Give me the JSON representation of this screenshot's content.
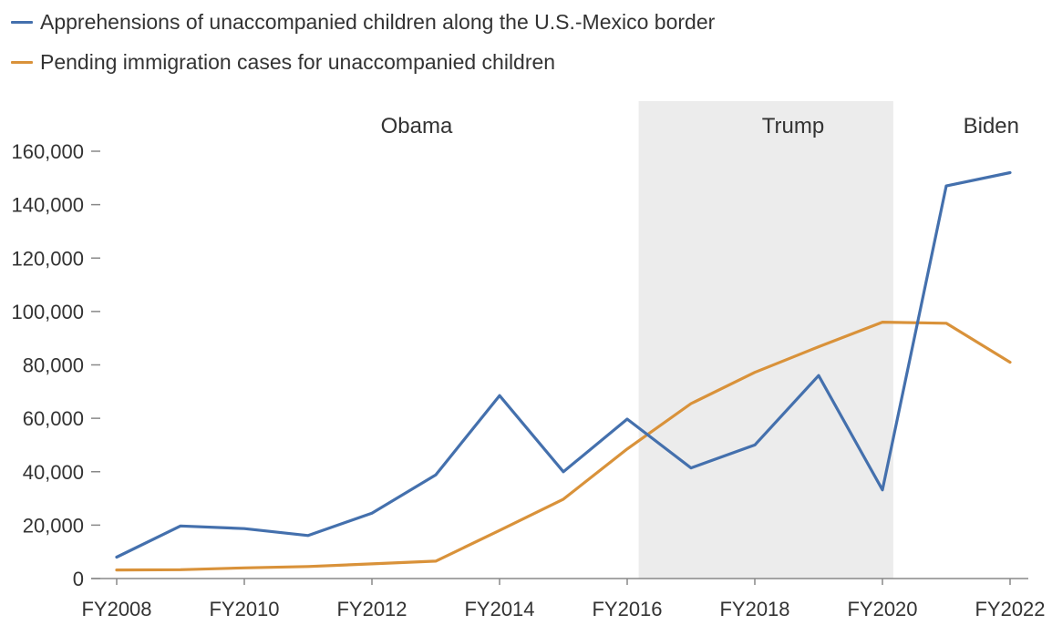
{
  "chart_data": {
    "type": "line",
    "title": "",
    "xlabel": "",
    "ylabel": "",
    "x": [
      "FY2008",
      "FY2009",
      "FY2010",
      "FY2011",
      "FY2012",
      "FY2013",
      "FY2014",
      "FY2015",
      "FY2016",
      "FY2017",
      "FY2018",
      "FY2019",
      "FY2020",
      "FY2021",
      "FY2022"
    ],
    "x_tick_labels": [
      "FY2008",
      "FY2010",
      "FY2012",
      "FY2014",
      "FY2016",
      "FY2018",
      "FY2020",
      "FY2022"
    ],
    "ylim": [
      0,
      160000
    ],
    "y_ticks": [
      0,
      20000,
      40000,
      60000,
      80000,
      100000,
      120000,
      140000,
      160000
    ],
    "y_tick_labels": [
      "0",
      "20,000",
      "40,000",
      "60,000",
      "80,000",
      "100,000",
      "120,000",
      "140,000",
      "160,000"
    ],
    "grid": false,
    "legend_position": "top-left",
    "series": [
      {
        "name": "Apprehensions of unaccompanied children along the U.S.-Mexico border",
        "color": "#4470ad",
        "values": [
          8000,
          19700,
          18700,
          16100,
          24500,
          38800,
          68500,
          40000,
          59700,
          41400,
          50000,
          76000,
          33200,
          147000,
          152000
        ]
      },
      {
        "name": "Pending immigration cases for unaccompanied children",
        "color": "#d9923a",
        "values": [
          3200,
          3300,
          4000,
          4500,
          5500,
          6500,
          18000,
          29700,
          48500,
          65500,
          77200,
          86800,
          96000,
          95600,
          81000
        ]
      }
    ],
    "shaded_periods": [
      {
        "label": "Obama",
        "start": "FY2008",
        "end": "FY2016",
        "shaded": false
      },
      {
        "label": "Trump",
        "start": "FY2016",
        "end": "FY2020",
        "shaded": true,
        "color": "#ececec"
      },
      {
        "label": "Biden",
        "start": "FY2021",
        "end": "FY2022",
        "shaded": false
      }
    ]
  }
}
